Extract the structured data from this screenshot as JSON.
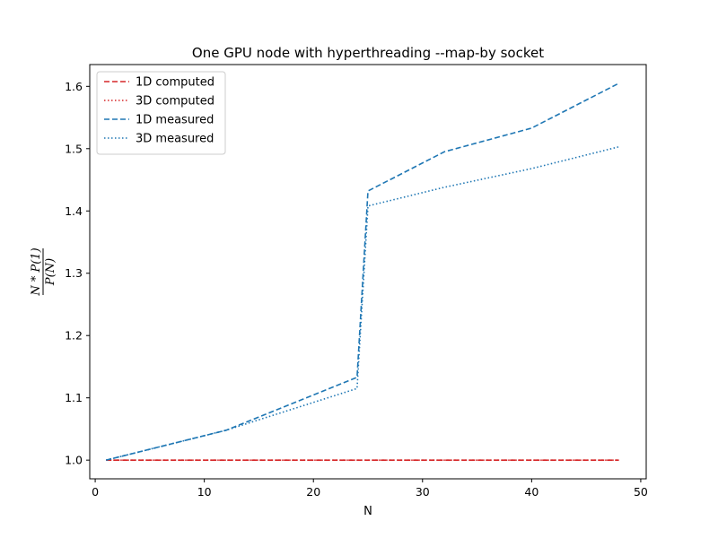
{
  "chart_data": {
    "type": "line",
    "title": "One GPU node with hyperthreading --map-by socket",
    "xlabel": "N",
    "ylabel": {
      "numerator": "N * P(1)",
      "denominator": "P(N)"
    },
    "xlim": [
      -0.5,
      50.5
    ],
    "ylim": [
      0.97,
      1.635
    ],
    "xticks": [
      0,
      10,
      20,
      30,
      40,
      50
    ],
    "yticks": [
      1.0,
      1.1,
      1.2,
      1.3,
      1.4,
      1.5,
      1.6
    ],
    "ytick_labels": [
      "1.0",
      "1.1",
      "1.2",
      "1.3",
      "1.4",
      "1.5",
      "1.6"
    ],
    "grid": false,
    "legend_position": "top-left",
    "series": [
      {
        "name": "1D computed",
        "color": "#d62728",
        "style": "dashed",
        "x": [
          1,
          12,
          24,
          25,
          32,
          40,
          48
        ],
        "y": [
          1.0,
          1.0,
          1.0,
          1.0,
          1.0,
          1.0,
          1.0
        ]
      },
      {
        "name": "3D computed",
        "color": "#d62728",
        "style": "dotted",
        "x": [
          1,
          12,
          24,
          25,
          32,
          40,
          48
        ],
        "y": [
          1.0,
          1.0,
          1.0,
          1.0,
          1.0,
          1.0,
          1.0
        ]
      },
      {
        "name": "1D measured",
        "color": "#1f77b4",
        "style": "dashed",
        "x": [
          1,
          12,
          24,
          25,
          32,
          40,
          48
        ],
        "y": [
          1.0,
          1.048,
          1.133,
          1.432,
          1.495,
          1.533,
          1.605
        ]
      },
      {
        "name": "3D measured",
        "color": "#1f77b4",
        "style": "dotted",
        "x": [
          1,
          12,
          24,
          25,
          32,
          40,
          48
        ],
        "y": [
          1.0,
          1.048,
          1.115,
          1.408,
          1.438,
          1.468,
          1.503
        ]
      }
    ]
  }
}
